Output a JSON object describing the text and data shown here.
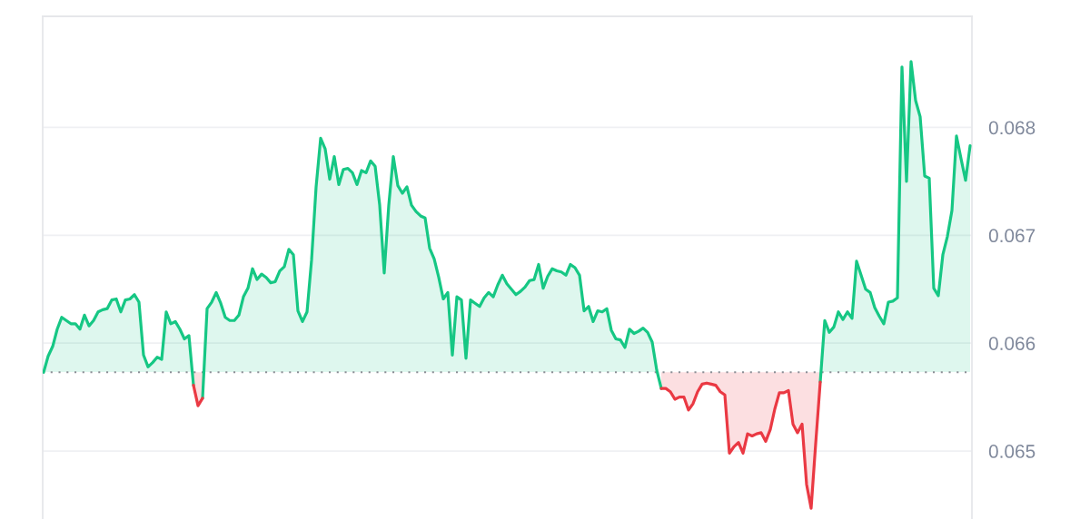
{
  "chart_data": {
    "type": "area",
    "categories": [
      null,
      null,
      null,
      null,
      null,
      null,
      null,
      null,
      null,
      null,
      null,
      null,
      null,
      null,
      null,
      null,
      null,
      null,
      null,
      null,
      null,
      null,
      null,
      null,
      null,
      null,
      null,
      null,
      null,
      null,
      null,
      null,
      null,
      null,
      null,
      null,
      null,
      null,
      null,
      null,
      null,
      null,
      null,
      null,
      null,
      null,
      null,
      null,
      null,
      null,
      null,
      null,
      null,
      null,
      null,
      null,
      null,
      null,
      null,
      null,
      null,
      null,
      null,
      null,
      null,
      null,
      null,
      null,
      null,
      null,
      null,
      null,
      null,
      null,
      null,
      null,
      null,
      null,
      null,
      null,
      null,
      null,
      null,
      null,
      null,
      null,
      null,
      null,
      null,
      null,
      null,
      null,
      null,
      null,
      null,
      null,
      null,
      null,
      null,
      null,
      null,
      null,
      null,
      null,
      null,
      null,
      null,
      null,
      null,
      null,
      null,
      null,
      null,
      null,
      null,
      null,
      null,
      null,
      null,
      null,
      null,
      null,
      null,
      null,
      null,
      null,
      null,
      null,
      null,
      null,
      null,
      null,
      null,
      null,
      null,
      null,
      null,
      null,
      null,
      null,
      null,
      null,
      null,
      null,
      null,
      null,
      null,
      null,
      null,
      null,
      null,
      null,
      null,
      null,
      null,
      null,
      null,
      null,
      null,
      null,
      null,
      null,
      null,
      null,
      null,
      null,
      null,
      null,
      null,
      null,
      null,
      null,
      null,
      null,
      null,
      null,
      null,
      null,
      null,
      null,
      null,
      null,
      null,
      null,
      null,
      null,
      null,
      null,
      null,
      null,
      null,
      null,
      null,
      null,
      null,
      null,
      null,
      null,
      null,
      null,
      null,
      null,
      null,
      null,
      null
    ],
    "series": [
      {
        "color": "#16c784",
        "values": [
          0.06573,
          0.06588,
          0.06597,
          0.06613,
          0.06624,
          0.06621,
          0.06618,
          0.06618,
          0.06613,
          0.06626,
          0.06616,
          0.06621,
          0.06629,
          0.06631,
          0.06632,
          0.0664,
          0.06641,
          0.06629,
          0.0664,
          0.06641,
          0.06645,
          0.06638,
          0.06589,
          0.06578,
          0.06582,
          0.06587,
          0.06585,
          0.06629,
          0.06618,
          0.0662,
          0.06613,
          0.06604,
          0.06607,
          0.06561,
          null,
          0.06549,
          0.06632,
          0.06638,
          0.06647,
          0.06637,
          0.06624,
          0.06621,
          0.06621,
          0.06626,
          0.06643,
          0.06651,
          0.06669,
          0.06659,
          0.06664,
          0.06661,
          0.06656,
          0.06657,
          0.06667,
          0.06671,
          0.06687,
          0.06682,
          0.0663,
          0.0662,
          0.06629,
          0.06677,
          0.06745,
          0.0679,
          0.0678,
          0.06752,
          0.06773,
          0.06747,
          0.06761,
          0.06762,
          0.06758,
          0.06747,
          0.0676,
          0.06758,
          0.06769,
          0.06764,
          0.06728,
          0.06665,
          0.06728,
          0.06773,
          0.06746,
          0.06739,
          0.06745,
          0.06728,
          0.06722,
          0.06718,
          0.06716,
          0.06688,
          0.06678,
          0.06661,
          0.06641,
          0.06647,
          0.06589,
          0.06643,
          0.0664,
          0.06586,
          0.0664,
          0.06637,
          0.06634,
          0.06642,
          0.06647,
          0.06643,
          0.06654,
          0.06663,
          0.06655,
          0.0665,
          0.06645,
          0.06648,
          0.06652,
          0.06658,
          0.06659,
          0.06673,
          0.06651,
          0.06662,
          0.06669,
          0.06667,
          0.06666,
          0.06663,
          0.06673,
          0.0667,
          0.06663,
          0.0663,
          0.06634,
          0.0662,
          0.0663,
          0.06629,
          0.06632,
          0.06612,
          0.06604,
          0.06603,
          0.06596,
          0.06613,
          0.06609,
          0.06611,
          0.06614,
          0.0661,
          0.06601,
          0.06575,
          0.06558,
          null,
          null,
          null,
          null,
          null,
          null,
          null,
          null,
          null,
          null,
          null,
          null,
          null,
          null,
          null,
          null,
          null,
          null,
          null,
          null,
          null,
          null,
          null,
          null,
          null,
          null,
          null,
          null,
          null,
          null,
          null,
          null,
          null,
          null,
          0.06564,
          0.06621,
          0.0661,
          0.06615,
          0.06629,
          0.06622,
          0.06629,
          0.06623,
          0.06676,
          0.06663,
          0.0665,
          0.06647,
          0.06633,
          0.06625,
          0.06618,
          0.06638,
          0.06639,
          0.06642,
          0.06856,
          0.0675,
          0.06861,
          0.06825,
          0.0681,
          0.06755,
          0.06753,
          0.06651,
          0.06644,
          0.06682,
          0.06699,
          0.06723,
          0.06792,
          0.06771,
          0.06751,
          0.06783
        ]
      },
      {
        "type": "line",
        "color": "#ea3943",
        "values": [
          null,
          null,
          null,
          null,
          null,
          null,
          null,
          null,
          null,
          null,
          null,
          null,
          null,
          null,
          null,
          null,
          null,
          null,
          null,
          null,
          null,
          null,
          null,
          null,
          null,
          null,
          null,
          null,
          null,
          null,
          null,
          null,
          null,
          0.06561,
          0.06542,
          0.06549,
          null,
          null,
          null,
          null,
          null,
          null,
          null,
          null,
          null,
          null,
          null,
          null,
          null,
          null,
          null,
          null,
          null,
          null,
          null,
          null,
          null,
          null,
          null,
          null,
          null,
          null,
          null,
          null,
          null,
          null,
          null,
          null,
          null,
          null,
          null,
          null,
          null,
          null,
          null,
          null,
          null,
          null,
          null,
          null,
          null,
          null,
          null,
          null,
          null,
          null,
          null,
          null,
          null,
          null,
          null,
          null,
          null,
          null,
          null,
          null,
          null,
          null,
          null,
          null,
          null,
          null,
          null,
          null,
          null,
          null,
          null,
          null,
          null,
          null,
          null,
          null,
          null,
          null,
          null,
          null,
          null,
          null,
          null,
          null,
          null,
          null,
          null,
          null,
          null,
          null,
          null,
          null,
          null,
          null,
          null,
          null,
          null,
          null,
          null,
          null,
          0.06558,
          0.06558,
          0.06555,
          0.06548,
          0.0655,
          0.0655,
          0.06538,
          0.06544,
          0.06555,
          0.06562,
          0.06563,
          0.06562,
          0.06561,
          0.06555,
          0.06552,
          0.06498,
          0.06504,
          0.06508,
          0.06498,
          0.06516,
          0.06514,
          0.06516,
          0.06517,
          0.06509,
          0.0652,
          0.06539,
          0.06554,
          0.06554,
          0.06556,
          0.06525,
          0.06517,
          0.06525,
          0.06469,
          0.06447,
          0.06507,
          0.06564,
          null,
          null,
          null,
          null,
          null,
          null,
          null,
          null,
          null,
          null,
          null,
          null,
          null,
          null,
          null,
          null,
          null,
          null,
          null,
          null,
          null,
          null,
          null,
          null,
          null,
          null,
          null,
          null,
          null,
          null,
          null,
          null,
          null
        ],
        "lower": [
          null,
          null,
          null,
          null,
          null,
          null,
          null,
          null,
          null,
          null,
          null,
          null,
          null,
          null,
          null,
          null,
          null,
          null,
          null,
          null,
          null,
          null,
          null,
          null,
          null,
          null,
          null,
          null,
          null,
          null,
          null,
          null,
          null,
          0.06561,
          0.06542,
          0.06549,
          null,
          null,
          null,
          null,
          null,
          null,
          null,
          null,
          null,
          null,
          null,
          null,
          null,
          null,
          null,
          null,
          null,
          null,
          null,
          null,
          null,
          null,
          null,
          null,
          null,
          null,
          null,
          null,
          null,
          null,
          null,
          null,
          null,
          null,
          null,
          null,
          null,
          null,
          null,
          null,
          null,
          null,
          null,
          null,
          null,
          null,
          null,
          null,
          null,
          null,
          null,
          null,
          null,
          null,
          null,
          null,
          null,
          null,
          null,
          null,
          null,
          null,
          null,
          null,
          null,
          null,
          null,
          null,
          null,
          null,
          null,
          null,
          null,
          null,
          null,
          null,
          null,
          null,
          null,
          null,
          null,
          null,
          null,
          null,
          null,
          null,
          null,
          null,
          null,
          null,
          null,
          null,
          null,
          null,
          null,
          null,
          null,
          null,
          null,
          null,
          0.06558,
          0.06558,
          0.06555,
          0.06548,
          0.0655,
          0.0655,
          0.06538,
          0.06544,
          0.06555,
          0.06562,
          0.06563,
          0.06562,
          0.06561,
          0.06555,
          0.06552,
          0.06498,
          0.06504,
          0.06508,
          0.06498,
          0.06516,
          0.06514,
          0.06516,
          0.06517,
          0.06509,
          0.0652,
          0.06539,
          0.06554,
          0.06554,
          0.06556,
          0.06525,
          0.06517,
          0.06525,
          0.06469,
          0.06447,
          0.06507,
          0.06564,
          null,
          null,
          null,
          null,
          null,
          null,
          null,
          null,
          null,
          null,
          null,
          null,
          null,
          null,
          null,
          null,
          null,
          null,
          null,
          null,
          null,
          null,
          null,
          null,
          null,
          null,
          null,
          null,
          null,
          null,
          null,
          null,
          null
        ],
        "upper": [
          null,
          null,
          null,
          null,
          null,
          null,
          null,
          null,
          null,
          null,
          null,
          null,
          null,
          null,
          null,
          null,
          null,
          null,
          null,
          null,
          null,
          null,
          null,
          null,
          null,
          null,
          null,
          null,
          null,
          null,
          null,
          null,
          null,
          0.06573,
          0.06573,
          0.06573,
          null,
          null,
          null,
          null,
          null,
          null,
          null,
          null,
          null,
          null,
          null,
          null,
          null,
          null,
          null,
          null,
          null,
          null,
          null,
          null,
          null,
          null,
          null,
          null,
          null,
          null,
          null,
          null,
          null,
          null,
          null,
          null,
          null,
          null,
          null,
          null,
          null,
          null,
          null,
          null,
          null,
          null,
          null,
          null,
          null,
          null,
          null,
          null,
          null,
          null,
          null,
          null,
          null,
          null,
          null,
          null,
          null,
          null,
          null,
          null,
          null,
          null,
          null,
          null,
          null,
          null,
          null,
          null,
          null,
          null,
          null,
          null,
          null,
          null,
          null,
          null,
          null,
          null,
          null,
          null,
          null,
          null,
          null,
          null,
          null,
          null,
          null,
          null,
          null,
          null,
          null,
          null,
          null,
          null,
          null,
          null,
          null,
          null,
          null,
          null,
          0.06573,
          0.06573,
          0.06573,
          0.06573,
          0.06573,
          0.06573,
          0.06573,
          0.06573,
          0.06573,
          0.06573,
          0.06573,
          0.06573,
          0.06573,
          0.06573,
          0.06573,
          0.06573,
          0.06573,
          0.06573,
          0.06573,
          0.06573,
          0.06573,
          0.06573,
          0.06573,
          0.06573,
          0.06573,
          0.06573,
          0.06573,
          0.06573,
          0.06573,
          0.06573,
          0.06573,
          0.06573,
          0.06573,
          0.06573,
          0.06573,
          0.06573,
          null,
          null,
          null,
          null,
          null,
          null,
          null,
          null,
          null,
          null,
          null,
          null,
          null,
          null,
          null,
          null,
          null,
          null,
          null,
          null,
          null,
          null,
          null,
          null,
          null,
          null,
          null,
          null,
          null,
          null,
          null,
          null,
          null
        ]
      }
    ],
    "ylim": [
      0.06437,
      0.06903
    ],
    "yticks": [
      0.065,
      0.066,
      0.067,
      0.068
    ],
    "grid": "y",
    "tick_labels": "y",
    "ref_lines": [
      {
        "axis": "y",
        "value": 0.06573,
        "color": "#8c8f96",
        "line_style": "dotted"
      }
    ]
  }
}
